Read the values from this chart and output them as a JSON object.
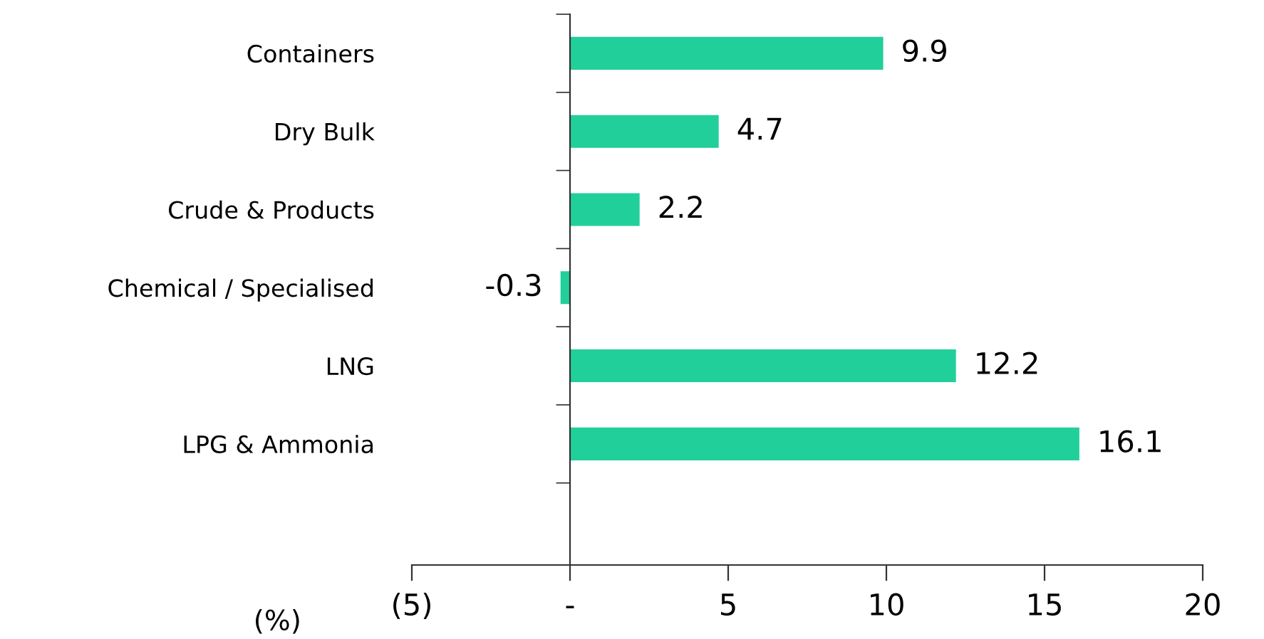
{
  "chart_data": {
    "type": "bar",
    "orientation": "horizontal",
    "categories": [
      "Containers",
      "Dry Bulk",
      "Crude & Products",
      "Chemical / Specialised",
      "LNG",
      "LPG & Ammonia"
    ],
    "values": [
      9.9,
      4.7,
      2.2,
      -0.3,
      12.2,
      16.1
    ],
    "color": "#21cf9b",
    "data_labels": true,
    "xlabel": "(%)",
    "xlim": [
      -5,
      20
    ],
    "xticks": [
      {
        "value": -5,
        "label": "(5)"
      },
      {
        "value": 0,
        "label": "-"
      },
      5,
      10,
      15,
      20
    ]
  }
}
